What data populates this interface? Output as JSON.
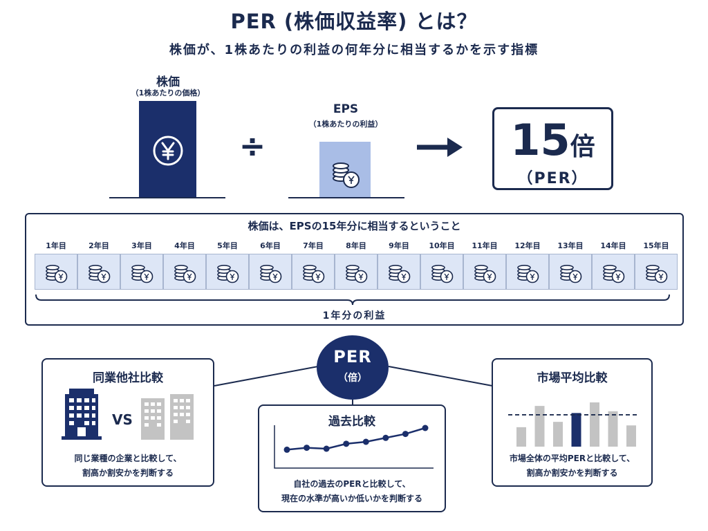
{
  "title": "PER (株価収益率) とは？",
  "subtitle": "株価が、1株あたりの利益の何年分に相当するかを示す指標",
  "formula": {
    "price_label": "株価",
    "price_sublabel": "（1株あたりの価格）",
    "divide_symbol": "÷",
    "eps_label": "EPS",
    "eps_sublabel": "（1株あたりの利益）",
    "arrow_symbol": "→",
    "result_number": "15",
    "result_unit": "倍",
    "result_label": "（PER）"
  },
  "timeline": {
    "heading": "株価は、EPSの15年分に相当するということ",
    "years": [
      "1年目",
      "2年目",
      "3年目",
      "4年目",
      "5年目",
      "6年目",
      "7年目",
      "8年目",
      "9年目",
      "10年目",
      "11年目",
      "12年目",
      "13年目",
      "14年目",
      "15年目"
    ],
    "total_label": "1年分の利益"
  },
  "per_center": {
    "main": "PER",
    "sub": "（倍）"
  },
  "cards": {
    "peer": {
      "title": "同業他社比較",
      "vs": "VS",
      "text_line1": "同じ業種の企業と比較して、",
      "text_line2": "割高か割安かを判断する"
    },
    "history": {
      "title": "過去比較",
      "text_line1": "自社の過去のPERと比較して、",
      "text_line2": "現在の水準が高いか低いかを判断する"
    },
    "market": {
      "title": "市場平均比較",
      "text_line1": "市場全体の平均PERと比較して、",
      "text_line2": "割高か割安かを判断する"
    }
  },
  "history_chart": {
    "type": "line",
    "values": [
      3,
      4,
      3.5,
      6,
      7,
      9,
      11,
      14
    ]
  },
  "market_chart": {
    "type": "bar",
    "values": [
      0.55,
      1.15,
      0.7,
      0.95,
      1.25,
      1.0,
      0.6
    ],
    "highlight_index": 3,
    "average": 0.9
  },
  "colors": {
    "navy": "#1b2f6b",
    "light_blue": "#a9bde6",
    "pale_blue": "#dde6f6",
    "gray": "#c3c3c3",
    "text": "#1b2a4e"
  }
}
